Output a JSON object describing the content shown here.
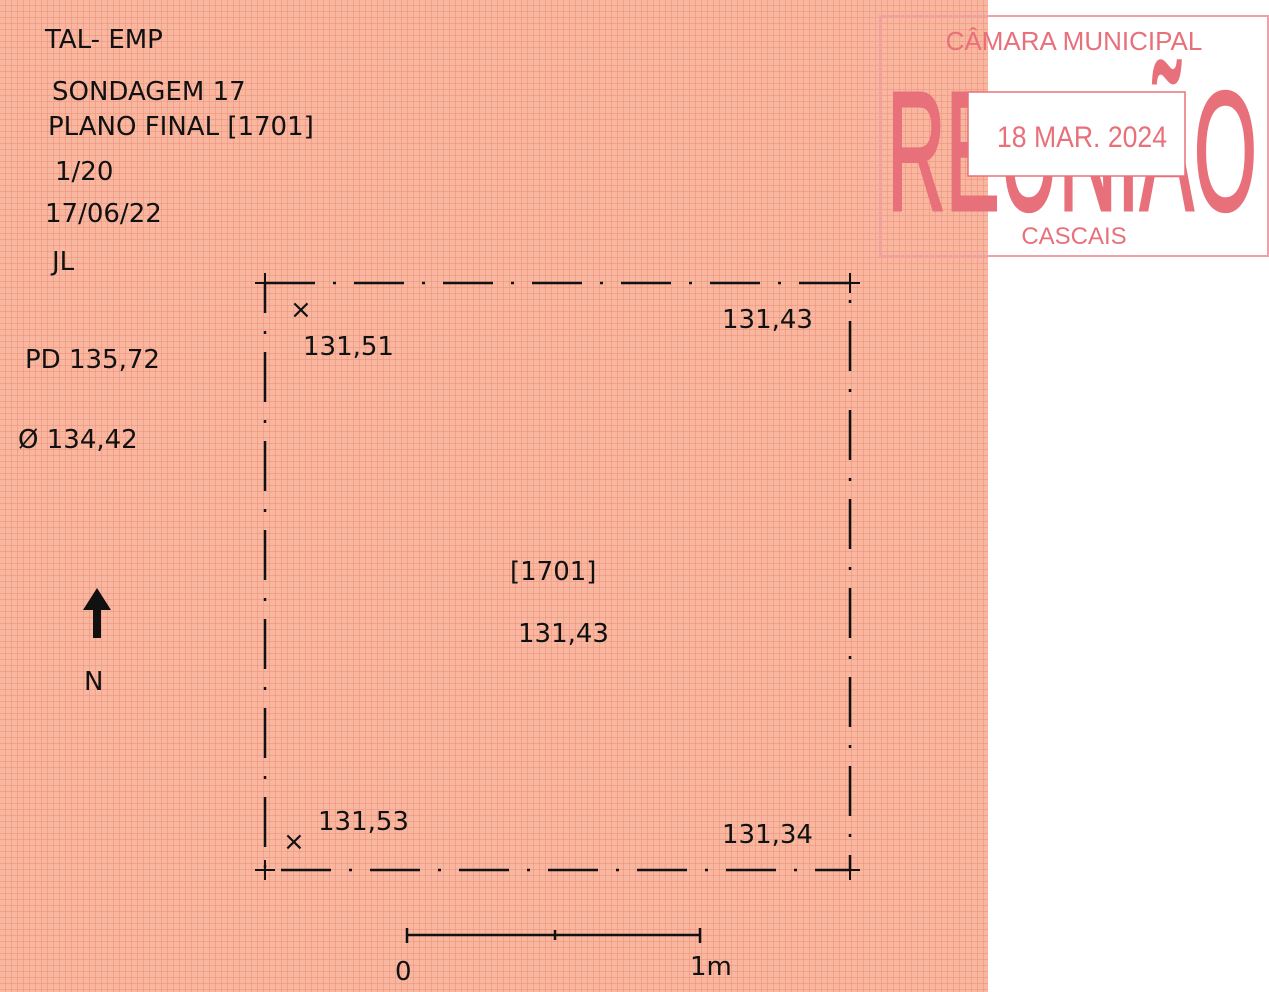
{
  "header": {
    "lines": [
      "TAL- EMP",
      "SONDAGEM 17",
      "PLANO FINAL [1701]",
      "1/20",
      "17/06/22",
      "JL"
    ]
  },
  "notes": [
    "PD 135,72",
    "Ø 134,42"
  ],
  "north": "N",
  "plan": {
    "corners": [
      "131,51",
      "131,43",
      "131,53",
      "131,34"
    ],
    "context": "[1701]",
    "level": "131,43"
  },
  "scale": {
    "labels": [
      "0",
      "1m"
    ]
  },
  "stamp": {
    "top": "CÂMARA MUNICIPAL",
    "big": "REUNIÃO",
    "date": "18 MAR. 2024",
    "bottom": "CASCAIS"
  }
}
